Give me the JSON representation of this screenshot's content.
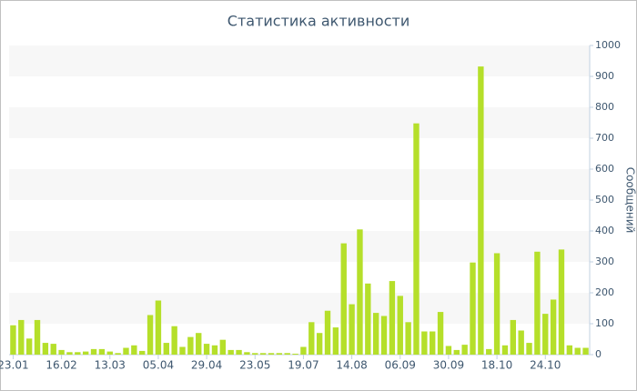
{
  "chart_data": {
    "type": "bar",
    "title": "Статистика активности",
    "y_label": "Сообщений",
    "categories": [
      "23.01",
      null,
      null,
      null,
      null,
      null,
      "16.02",
      null,
      null,
      null,
      null,
      null,
      "13.03",
      null,
      null,
      null,
      null,
      null,
      "05.04",
      null,
      null,
      null,
      null,
      null,
      "29.04",
      null,
      null,
      null,
      null,
      null,
      "23.05",
      null,
      null,
      null,
      null,
      null,
      "19.07",
      null,
      null,
      null,
      null,
      null,
      "14.08",
      null,
      null,
      null,
      null,
      null,
      "06.09",
      null,
      null,
      null,
      null,
      null,
      "30.09",
      null,
      null,
      null,
      null,
      null,
      "18.10",
      null,
      null,
      null,
      null,
      null,
      "24.10",
      null,
      null,
      null,
      null,
      null
    ],
    "values": [
      95,
      112,
      52,
      112,
      38,
      35,
      15,
      8,
      8,
      10,
      18,
      18,
      10,
      5,
      22,
      30,
      12,
      128,
      175,
      38,
      92,
      25,
      57,
      70,
      35,
      30,
      48,
      15,
      15,
      8,
      5,
      5,
      5,
      5,
      5,
      3,
      25,
      105,
      70,
      142,
      88,
      360,
      163,
      405,
      230,
      135,
      125,
      238,
      190,
      105,
      748,
      75,
      75,
      138,
      28,
      15,
      32,
      298,
      932,
      18,
      328,
      30,
      112,
      78,
      38,
      333,
      132,
      178,
      340,
      30,
      22,
      22
    ],
    "color": "#b5df2a",
    "ylim": [
      0,
      1000
    ],
    "yticks": [
      0,
      100,
      200,
      300,
      400,
      500,
      600,
      700,
      800,
      900,
      1000
    ],
    "grid": "alternate-bands",
    "y_axis_side": "right"
  }
}
